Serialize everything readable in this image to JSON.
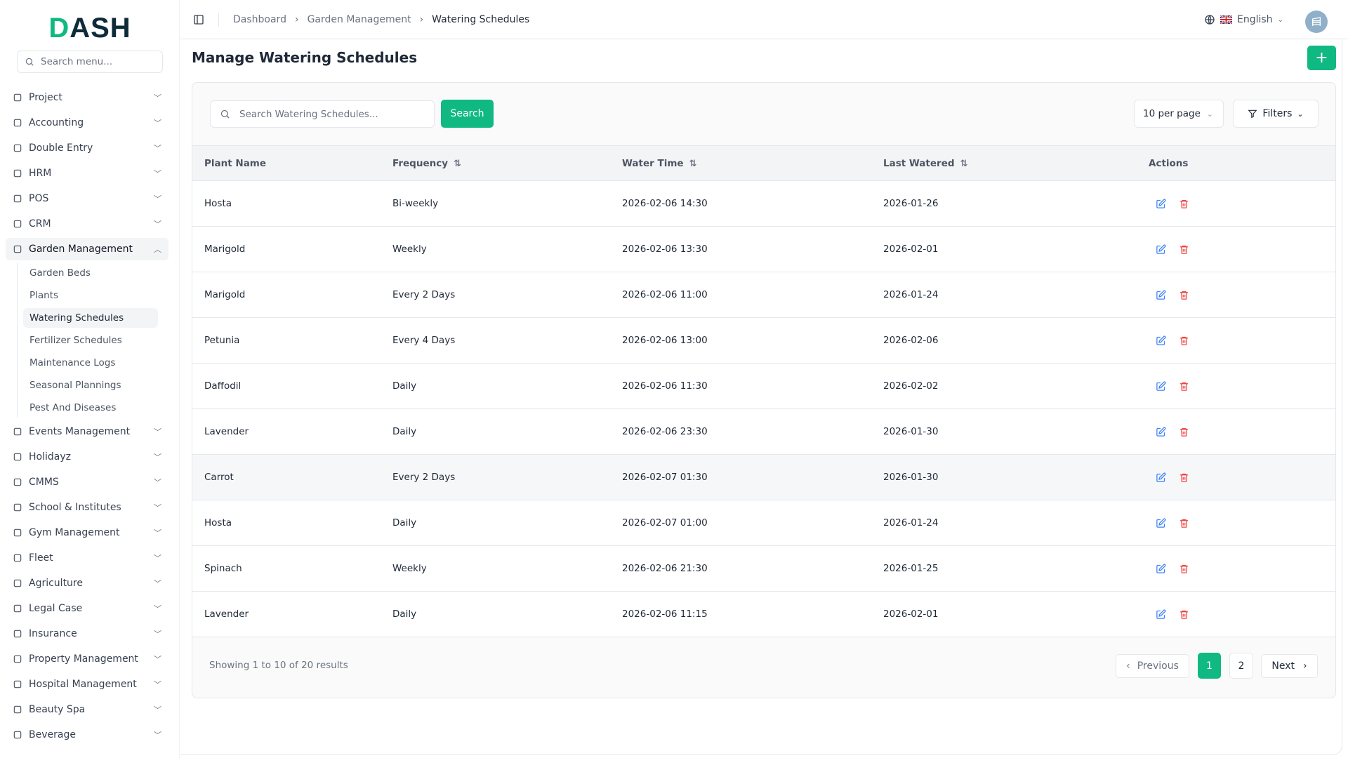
{
  "brand": {
    "logo": "DASH",
    "accent": "#10b981"
  },
  "sidebar": {
    "search_placeholder": "Search menu...",
    "items": [
      {
        "label": "Project",
        "icon": "folder-icon"
      },
      {
        "label": "Accounting",
        "icon": "calculator-icon"
      },
      {
        "label": "Double Entry",
        "icon": "book-icon"
      },
      {
        "label": "HRM",
        "icon": "users-icon"
      },
      {
        "label": "POS",
        "icon": "store-icon"
      },
      {
        "label": "CRM",
        "icon": "contact-icon"
      },
      {
        "label": "Garden Management",
        "icon": "sprout-icon",
        "open": true
      }
    ],
    "sub_items": [
      "Garden Beds",
      "Plants",
      "Watering Schedules",
      "Fertilizer Schedules",
      "Maintenance Logs",
      "Seasonal Plannings",
      "Pest And Diseases"
    ],
    "active_sub": "Watering Schedules",
    "items_after": [
      {
        "label": "Events Management",
        "icon": "party-icon"
      },
      {
        "label": "Holidayz",
        "icon": "holiday-icon"
      },
      {
        "label": "CMMS",
        "icon": "gear-icon"
      },
      {
        "label": "School & Institutes",
        "icon": "school-icon"
      },
      {
        "label": "Gym Management",
        "icon": "dumbbell-icon"
      },
      {
        "label": "Fleet",
        "icon": "truck-icon"
      },
      {
        "label": "Agriculture",
        "icon": "tractor-icon"
      },
      {
        "label": "Legal Case",
        "icon": "scale-icon"
      },
      {
        "label": "Insurance",
        "icon": "shield-icon"
      },
      {
        "label": "Property Management",
        "icon": "property-icon"
      },
      {
        "label": "Hospital Management",
        "icon": "stethoscope-icon"
      },
      {
        "label": "Beauty Spa",
        "icon": "scissors-icon"
      },
      {
        "label": "Beverage",
        "icon": "cup-icon"
      }
    ]
  },
  "header": {
    "breadcrumb": [
      "Dashboard",
      "Garden Management",
      "Watering Schedules"
    ],
    "language": "English"
  },
  "page": {
    "title": "Manage Watering Schedules",
    "add_label": "+"
  },
  "toolbar": {
    "search_placeholder": "Search Watering Schedules...",
    "search_label": "Search",
    "per_page": "10 per page",
    "filters_label": "Filters"
  },
  "table": {
    "columns": [
      "Plant Name",
      "Frequency",
      "Water Time",
      "Last Watered",
      "Actions"
    ],
    "rows": [
      [
        "Hosta",
        "Bi-weekly",
        "2026-02-06 14:30",
        "2026-01-26"
      ],
      [
        "Marigold",
        "Weekly",
        "2026-02-06 13:30",
        "2026-02-01"
      ],
      [
        "Marigold",
        "Every 2 Days",
        "2026-02-06 11:00",
        "2026-01-24"
      ],
      [
        "Petunia",
        "Every 4 Days",
        "2026-02-06 13:00",
        "2026-02-06"
      ],
      [
        "Daffodil",
        "Daily",
        "2026-02-06 11:30",
        "2026-02-02"
      ],
      [
        "Lavender",
        "Daily",
        "2026-02-06 23:30",
        "2026-01-30"
      ],
      [
        "Carrot",
        "Every 2 Days",
        "2026-02-07 01:30",
        "2026-01-30"
      ],
      [
        "Hosta",
        "Daily",
        "2026-02-07 01:00",
        "2026-01-24"
      ],
      [
        "Spinach",
        "Weekly",
        "2026-02-06 21:30",
        "2026-01-25"
      ],
      [
        "Lavender",
        "Daily",
        "2026-02-06 11:15",
        "2026-02-01"
      ]
    ]
  },
  "pagination": {
    "summary": "Showing 1 to 10 of 20 results",
    "previous": "Previous",
    "pages": [
      "1",
      "2"
    ],
    "current": "1",
    "next": "Next"
  }
}
